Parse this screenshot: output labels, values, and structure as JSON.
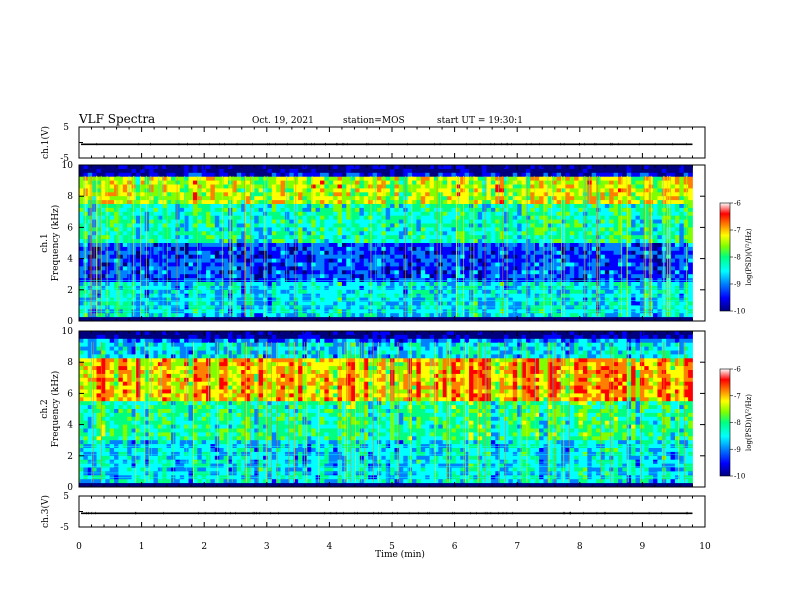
{
  "header": {
    "title": "VLF Spectra",
    "date": "Oct. 19, 2021",
    "station": "station=MOS",
    "start": "start UT =  19:30:1"
  },
  "chart_data": [
    {
      "type": "line",
      "name": "ch1-voltage",
      "ylabel": "ch.1(V)",
      "ylim": [
        -5,
        5
      ],
      "yticks": [
        "5",
        "-5"
      ],
      "xlim": [
        0,
        10
      ],
      "trace_level": -0.6
    },
    {
      "type": "heatmap",
      "name": "ch1-spectrogram",
      "ylabel": "ch.1\nFrequency (kHz)",
      "ylabel_lines": [
        "ch.1",
        "Frequency (kHz)"
      ],
      "ylim": [
        0,
        10
      ],
      "yticks": [
        "0",
        "2",
        "4",
        "6",
        "8",
        "10"
      ],
      "xlim": [
        0,
        10
      ],
      "data_end_min": 9.8,
      "colorbar": {
        "label": "log(PSD)(V²/Hz)",
        "ticks": [
          "-6",
          "-7",
          "-8",
          "-9",
          "-10"
        ],
        "range": [
          -10,
          -6
        ]
      }
    },
    {
      "type": "heatmap",
      "name": "ch2-spectrogram",
      "ylabel": "ch.2\nFrequency (kHz)",
      "ylabel_lines": [
        "ch.2",
        "Frequency (kHz)"
      ],
      "ylim": [
        0,
        10
      ],
      "yticks": [
        "0",
        "2",
        "4",
        "6",
        "8",
        "10"
      ],
      "xlim": [
        0,
        10
      ],
      "data_end_min": 9.8,
      "colorbar": {
        "label": "log(PSD)(V²/Hz)",
        "ticks": [
          "-6",
          "-7",
          "-8",
          "-9",
          "-10"
        ],
        "range": [
          -10,
          -6
        ]
      }
    },
    {
      "type": "line",
      "name": "ch3-voltage",
      "ylabel": "ch.3(V)",
      "ylim": [
        -5,
        5
      ],
      "yticks": [
        "5",
        "-5"
      ],
      "xlim": [
        0,
        10
      ],
      "trace_level": -0.6
    }
  ],
  "xaxis": {
    "label": "Time (min)",
    "ticks": [
      "0",
      "1",
      "2",
      "3",
      "4",
      "5",
      "6",
      "7",
      "8",
      "9",
      "10"
    ]
  },
  "colors": {
    "colormap": [
      "#00007f",
      "#0000ff",
      "#0080ff",
      "#00ffff",
      "#00ff80",
      "#80ff00",
      "#ffff00",
      "#ff8000",
      "#ff0000",
      "#ffffff"
    ]
  }
}
